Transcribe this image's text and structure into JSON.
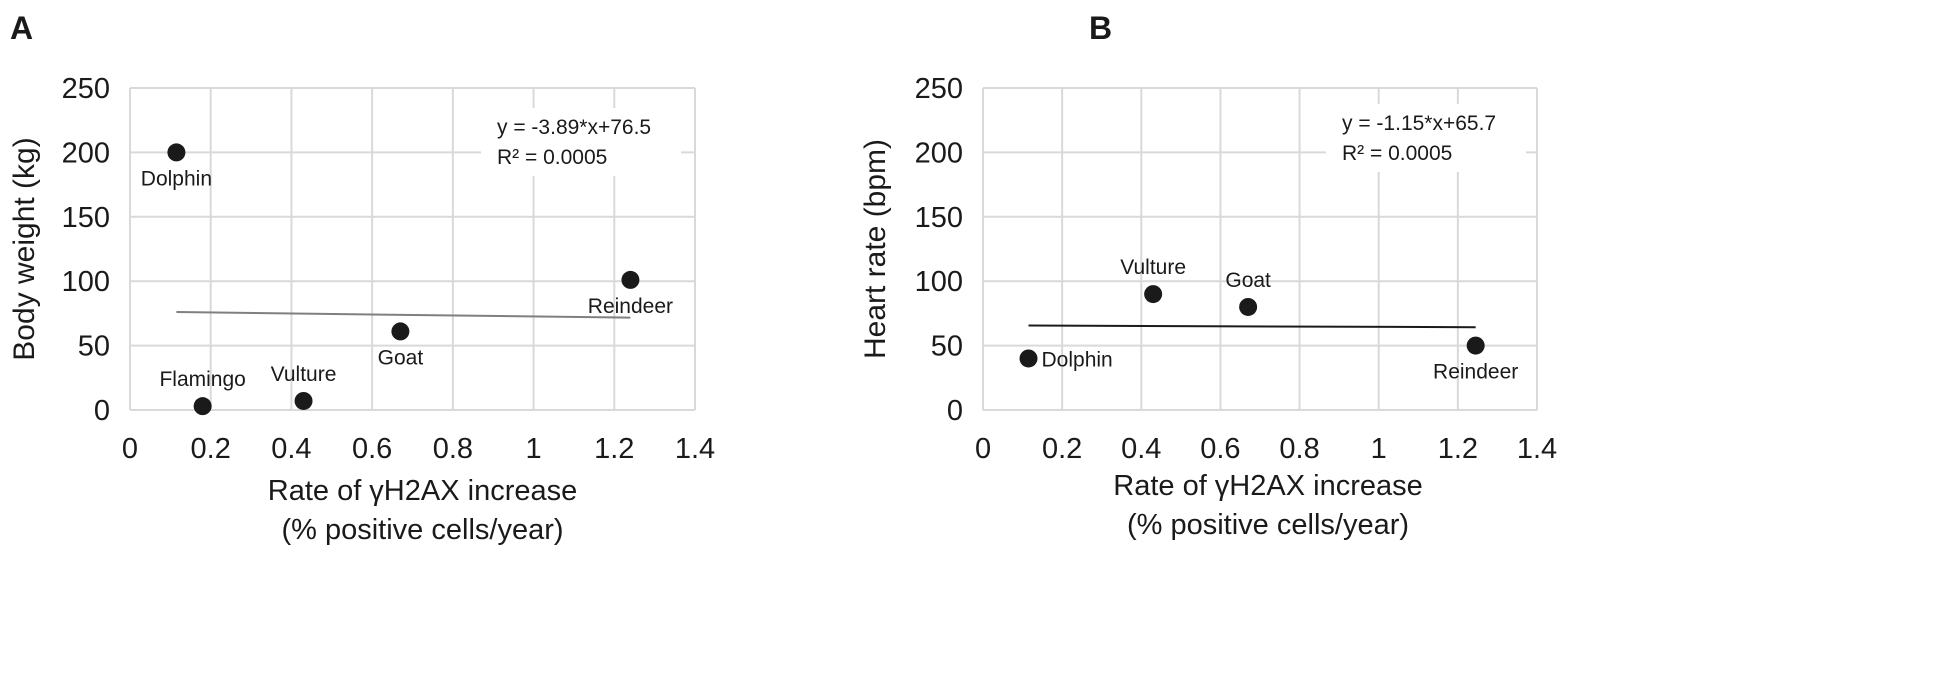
{
  "chart_data": [
    {
      "type": "scatter",
      "panel_label": "A",
      "xlabel_lines": [
        "Rate of γH2AX increase",
        "(% positive cells/year)"
      ],
      "ylabel": "Body weight (kg)",
      "xlim": [
        0,
        1.4
      ],
      "ylim": [
        0,
        250
      ],
      "x_ticks": [
        "0",
        "0.2",
        "0.4",
        "0.6",
        "0.8",
        "1",
        "1.2",
        "1.4"
      ],
      "y_ticks": [
        "0",
        "50",
        "100",
        "150",
        "200",
        "250"
      ],
      "grid": true,
      "points": [
        {
          "label": "Dolphin",
          "x": 0.115,
          "y": 200,
          "label_pos": "below"
        },
        {
          "label": "Flamingo",
          "x": 0.18,
          "y": 3,
          "label_pos": "above"
        },
        {
          "label": "Vulture",
          "x": 0.43,
          "y": 7,
          "label_pos": "above"
        },
        {
          "label": "Goat",
          "x": 0.67,
          "y": 61,
          "label_pos": "below"
        },
        {
          "label": "Reindeer",
          "x": 1.24,
          "y": 101,
          "label_pos": "below"
        }
      ],
      "trendline": {
        "x": [
          0.115,
          1.24
        ],
        "y": [
          76.05,
          71.68
        ],
        "color": "#7f7f7f"
      },
      "equation_lines": [
        "y = -3.89*x+76.5",
        "R² = 0.0005"
      ]
    },
    {
      "type": "scatter",
      "panel_label": "B",
      "xlabel_lines": [
        "Rate of γH2AX increase",
        "(% positive cells/year)"
      ],
      "ylabel": "Heart rate (bpm)",
      "xlim": [
        0,
        1.4
      ],
      "ylim": [
        0,
        250
      ],
      "x_ticks": [
        "0",
        "0.2",
        "0.4",
        "0.6",
        "0.8",
        "1",
        "1.2",
        "1.4"
      ],
      "y_ticks": [
        "0",
        "50",
        "100",
        "150",
        "200",
        "250"
      ],
      "grid": true,
      "points": [
        {
          "label": "Dolphin",
          "x": 0.115,
          "y": 40,
          "label_pos": "right"
        },
        {
          "label": "Vulture",
          "x": 0.43,
          "y": 90,
          "label_pos": "above"
        },
        {
          "label": "Goat",
          "x": 0.67,
          "y": 80,
          "label_pos": "above"
        },
        {
          "label": "Reindeer",
          "x": 1.245,
          "y": 50,
          "label_pos": "below"
        }
      ],
      "trendline": {
        "x": [
          0.115,
          1.245
        ],
        "y": [
          65.57,
          64.27
        ],
        "color": "#1a1a1a"
      },
      "equation_lines": [
        "y = -1.15*x+65.7",
        "R² = 0.0005"
      ]
    }
  ]
}
